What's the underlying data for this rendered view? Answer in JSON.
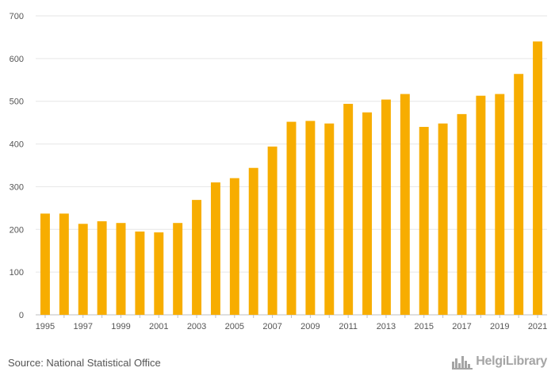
{
  "chart_data": {
    "type": "bar",
    "title": "",
    "xlabel": "",
    "ylabel": "",
    "categories": [
      "1995",
      "1996",
      "1997",
      "1998",
      "1999",
      "2000",
      "2001",
      "2002",
      "2003",
      "2004",
      "2005",
      "2006",
      "2007",
      "2008",
      "2009",
      "2010",
      "2011",
      "2012",
      "2013",
      "2014",
      "2015",
      "2016",
      "2017",
      "2018",
      "2019",
      "2020",
      "2021"
    ],
    "values": [
      237,
      237,
      213,
      219,
      215,
      195,
      193,
      215,
      269,
      310,
      320,
      344,
      394,
      452,
      454,
      448,
      494,
      474,
      504,
      517,
      440,
      448,
      470,
      513,
      517,
      564,
      640
    ],
    "x_tick_labels": [
      "1995",
      "1997",
      "1999",
      "2001",
      "2003",
      "2005",
      "2007",
      "2009",
      "2011",
      "2013",
      "2015",
      "2017",
      "2019",
      "2021"
    ],
    "y_ticks": [
      "0",
      "100",
      "200",
      "300",
      "400",
      "500",
      "600",
      "700"
    ],
    "ylim": [
      0,
      700
    ],
    "grid": true,
    "bar_color": "#f7ad00"
  },
  "footer": {
    "source": "Source: National Statistical Office",
    "logo": "HelgiLibrary",
    "logo_icon": "city-skyline-icon"
  }
}
